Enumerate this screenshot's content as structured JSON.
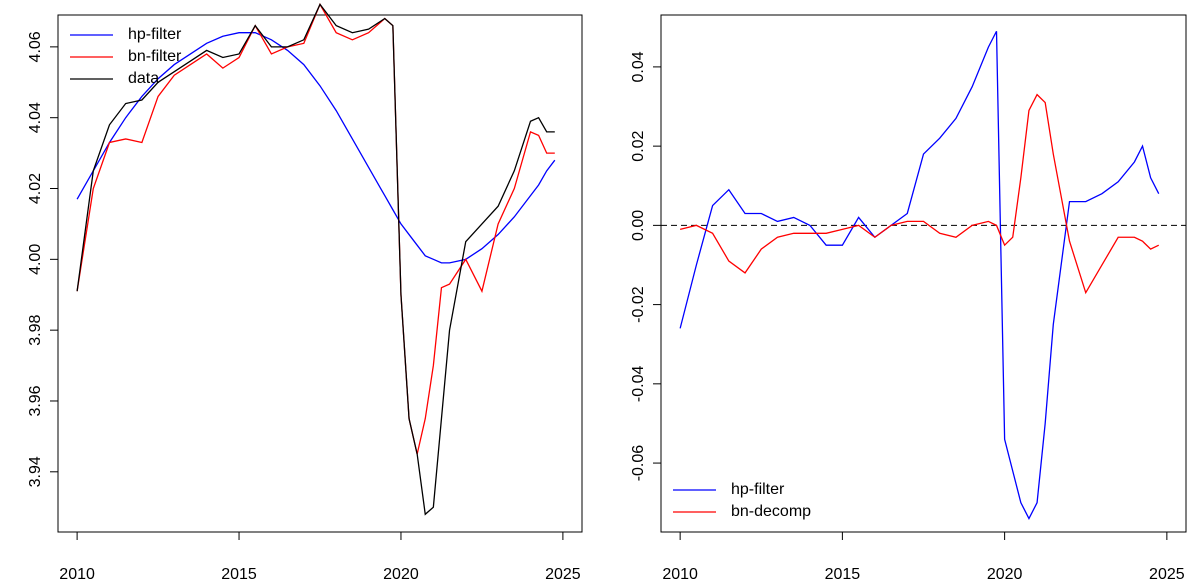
{
  "chart_data": [
    {
      "type": "line",
      "x": [
        2010,
        2010.5,
        2011,
        2011.5,
        2012,
        2012.5,
        2013,
        2013.5,
        2014,
        2014.5,
        2015,
        2015.5,
        2016,
        2016.5,
        2017,
        2017.5,
        2018,
        2018.5,
        2019,
        2019.5,
        2019.75,
        2020,
        2020.25,
        2020.5,
        2020.75,
        2021,
        2021.25,
        2021.5,
        2022,
        2022.5,
        2023,
        2023.5,
        2024,
        2024.25,
        2024.5,
        2024.75
      ],
      "series": [
        {
          "name": "hp-filter",
          "color": "#0000ff",
          "values": [
            4.017,
            4.025,
            4.033,
            4.04,
            4.046,
            4.051,
            4.055,
            4.058,
            4.061,
            4.063,
            4.064,
            4.064,
            4.062,
            4.059,
            4.055,
            4.049,
            4.042,
            4.034,
            4.026,
            4.018,
            4.014,
            4.01,
            4.007,
            4.004,
            4.001,
            4.0,
            3.999,
            3.999,
            4.0,
            4.003,
            4.007,
            4.012,
            4.018,
            4.021,
            4.025,
            4.028
          ]
        },
        {
          "name": "bn-filter",
          "color": "#ff0000",
          "values": [
            3.991,
            4.02,
            4.033,
            4.034,
            4.033,
            4.046,
            4.052,
            4.055,
            4.058,
            4.054,
            4.057,
            4.066,
            4.058,
            4.06,
            4.061,
            4.072,
            4.064,
            4.062,
            4.064,
            4.068,
            4.066,
            3.99,
            3.955,
            3.945,
            3.955,
            3.97,
            3.992,
            3.993,
            4.0,
            3.991,
            4.01,
            4.02,
            4.036,
            4.035,
            4.03,
            4.03
          ]
        },
        {
          "name": "data",
          "color": "#000000",
          "values": [
            3.991,
            4.025,
            4.038,
            4.044,
            4.045,
            4.05,
            4.053,
            4.056,
            4.059,
            4.057,
            4.058,
            4.066,
            4.06,
            4.06,
            4.062,
            4.072,
            4.066,
            4.064,
            4.065,
            4.068,
            4.066,
            3.99,
            3.955,
            3.945,
            3.928,
            3.93,
            3.955,
            3.98,
            4.005,
            4.01,
            4.015,
            4.025,
            4.039,
            4.04,
            4.036,
            4.036
          ]
        }
      ],
      "xlim": [
        2009.41,
        2025.59
      ],
      "xticks": [
        2010,
        2015,
        2020,
        2025
      ],
      "ylim": [
        3.923,
        4.069
      ],
      "yticks": [
        3.94,
        3.96,
        3.98,
        {
          "value": 4.0,
          "label": "4.00"
        },
        4.02,
        4.04,
        4.06
      ],
      "legend": "topleft"
    },
    {
      "type": "line",
      "x": [
        2010,
        2010.5,
        2011,
        2011.5,
        2012,
        2012.5,
        2013,
        2013.5,
        2014,
        2014.5,
        2015,
        2015.5,
        2016,
        2016.5,
        2017,
        2017.5,
        2018,
        2018.5,
        2019,
        2019.5,
        2019.75,
        2020,
        2020.25,
        2020.5,
        2020.75,
        2021,
        2021.25,
        2021.5,
        2022,
        2022.5,
        2023,
        2023.5,
        2024,
        2024.25,
        2024.5,
        2024.75
      ],
      "series": [
        {
          "name": "hp-filter",
          "color": "#0000ff",
          "values": [
            -0.026,
            -0.01,
            0.005,
            0.009,
            0.003,
            0.003,
            0.001,
            0.002,
            0.0,
            -0.005,
            -0.005,
            0.002,
            -0.003,
            0.0,
            0.003,
            0.018,
            0.022,
            0.027,
            0.035,
            0.045,
            0.049,
            -0.054,
            -0.062,
            -0.07,
            -0.074,
            -0.07,
            -0.05,
            -0.025,
            0.006,
            0.006,
            0.008,
            0.011,
            0.016,
            0.02,
            0.012,
            0.008
          ]
        },
        {
          "name": "bn-decomp",
          "color": "#ff0000",
          "values": [
            -0.001,
            0.0,
            -0.002,
            -0.009,
            -0.012,
            -0.006,
            -0.003,
            -0.002,
            -0.002,
            -0.002,
            -0.001,
            0.0,
            -0.003,
            0.0,
            0.001,
            0.001,
            -0.002,
            -0.003,
            0.0,
            0.001,
            0.0,
            -0.005,
            -0.003,
            0.012,
            0.029,
            0.033,
            0.031,
            0.018,
            -0.004,
            -0.017,
            -0.01,
            -0.003,
            -0.003,
            -0.004,
            -0.006,
            -0.005
          ]
        }
      ],
      "xlim": [
        2009.41,
        2025.59
      ],
      "xticks": [
        2010,
        2015,
        2020,
        2025
      ],
      "ylim": [
        -0.0774,
        0.0531
      ],
      "yticks": [
        -0.06,
        -0.04,
        -0.02,
        {
          "value": 0,
          "label": "0.00"
        },
        0.02,
        0.04
      ],
      "hline": 0,
      "legend": "bottomleft"
    }
  ]
}
